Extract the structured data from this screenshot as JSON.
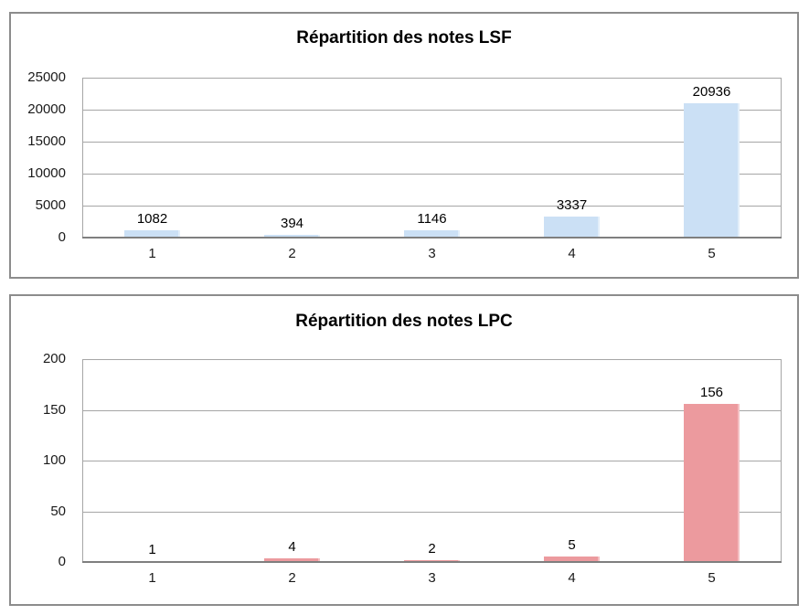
{
  "page": {
    "background_color": "#ffffff",
    "panel_border_color": "#8c8c8c",
    "gridline_color": "#a6a6a6",
    "axis_line_color": "#7f7f7f",
    "text_color": "#1a1a1a"
  },
  "chart_data": [
    {
      "type": "bar",
      "title": "Répartition des notes LSF",
      "categories": [
        "1",
        "2",
        "3",
        "4",
        "5"
      ],
      "values": [
        1082,
        394,
        1146,
        3337,
        20936
      ],
      "data_labels": [
        "1082",
        "394",
        "1146",
        "3337",
        "20936"
      ],
      "ylim": [
        0,
        25000
      ],
      "yticks": [
        "0",
        "5000",
        "10000",
        "15000",
        "20000",
        "25000"
      ],
      "grid": true,
      "legend_position": "none",
      "bar_color": "#cbe0f5",
      "bar_edge_color": "#e2eef9",
      "xlabel": "",
      "ylabel": ""
    },
    {
      "type": "bar",
      "title": "Répartition des notes LPC",
      "categories": [
        "1",
        "2",
        "3",
        "4",
        "5"
      ],
      "values": [
        1,
        4,
        2,
        5,
        156
      ],
      "data_labels": [
        "1",
        "4",
        "2",
        "5",
        "156"
      ],
      "ylim": [
        0,
        200
      ],
      "yticks": [
        "0",
        "50",
        "100",
        "150",
        "200"
      ],
      "grid": true,
      "legend_position": "none",
      "bar_color": "#ec9a9e",
      "bar_edge_color": "#f4bfc2",
      "xlabel": "",
      "ylabel": ""
    }
  ]
}
